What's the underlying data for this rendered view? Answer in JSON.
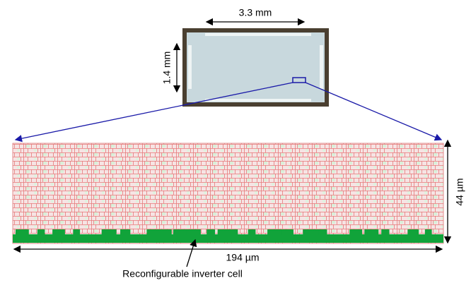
{
  "chip_width_label": "3.3 mm",
  "chip_height_label": "1.4 mm",
  "layout_height_label": "44 µm",
  "layout_width_label": "194 µm",
  "callout_label": "Reconfigurable inverter cell"
}
